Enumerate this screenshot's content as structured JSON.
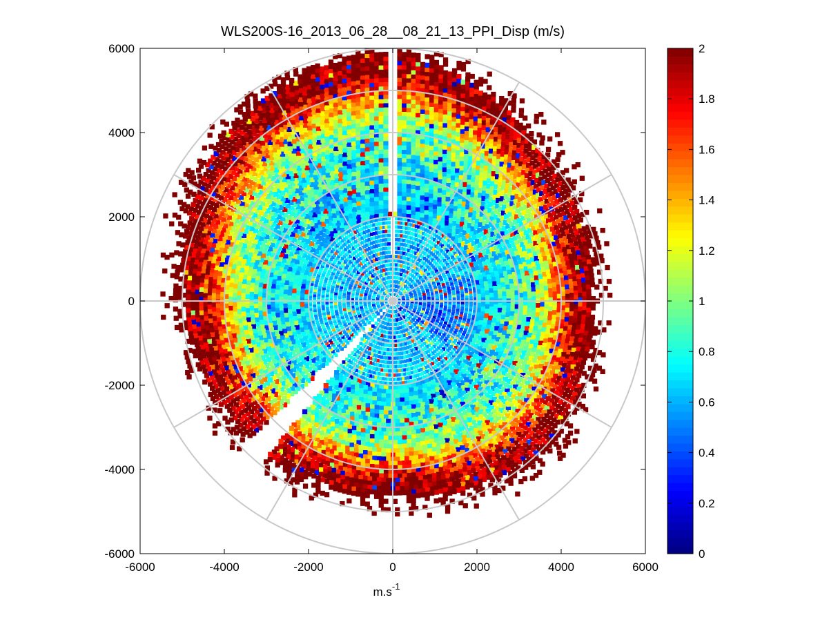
{
  "chart_data": {
    "type": "heatmap",
    "subtype": "polar-ppi",
    "title": "WLS200S-16_2013_06_28__08_21_13_PPI_Disp (m/s)",
    "xlabel": "m.s",
    "xlabel_superscript": "-1",
    "ylabel": "",
    "xlim": [
      -6000,
      6000
    ],
    "ylim": [
      -6000,
      6000
    ],
    "xticks": [
      -6000,
      -4000,
      -2000,
      0,
      2000,
      4000,
      6000
    ],
    "yticks": [
      6000,
      4000,
      2000,
      0,
      -2000,
      -4000,
      -6000
    ],
    "xtick_labels": [
      "-6000",
      "-4000",
      "-2000",
      "0",
      "2000",
      "4000",
      "6000"
    ],
    "ytick_labels": [
      "6000",
      "4000",
      "2000",
      "0",
      "-2000",
      "-4000",
      "-6000"
    ],
    "range_rings": [
      1000,
      2000,
      3000,
      4000,
      5000,
      6000
    ],
    "spokes_deg": [
      0,
      30,
      60,
      90,
      120,
      150,
      180,
      210,
      240,
      270,
      300,
      330
    ],
    "colorbar": {
      "clim": [
        0,
        2
      ],
      "ticks": [
        0,
        0.2,
        0.4,
        0.6,
        0.8,
        1,
        1.2,
        1.4,
        1.6,
        1.8,
        2
      ],
      "tick_labels": [
        "0",
        "0.2",
        "0.4",
        "0.6",
        "0.8",
        "1",
        "1.2",
        "1.4",
        "1.6",
        "1.8",
        "2"
      ],
      "colormap": "jet"
    },
    "scan": {
      "max_range": 6000,
      "gaps_deg": [
        [
          -1.5,
          1.5
        ],
        [
          219,
          226
        ]
      ],
      "radial_profile": [
        {
          "range": 0,
          "value": 0.62
        },
        {
          "range": 1000,
          "value": 0.62
        },
        {
          "range": 2000,
          "value": 0.68
        },
        {
          "range": 3000,
          "value": 0.85
        },
        {
          "range": 3500,
          "value": 1.05
        },
        {
          "range": 4000,
          "value": 1.6
        },
        {
          "range": 4400,
          "value": 2.0
        },
        {
          "range": 5000,
          "value": 2.0
        }
      ],
      "saturated_edge_range_by_azimuth_deg": [
        {
          "az": 0,
          "range": 5900
        },
        {
          "az": 45,
          "range": 5000
        },
        {
          "az": 90,
          "range": 4700
        },
        {
          "az": 135,
          "range": 5000
        },
        {
          "az": 180,
          "range": 4600
        },
        {
          "az": 225,
          "range": 4700
        },
        {
          "az": 270,
          "range": 4900
        },
        {
          "az": 315,
          "range": 5600
        }
      ]
    }
  }
}
